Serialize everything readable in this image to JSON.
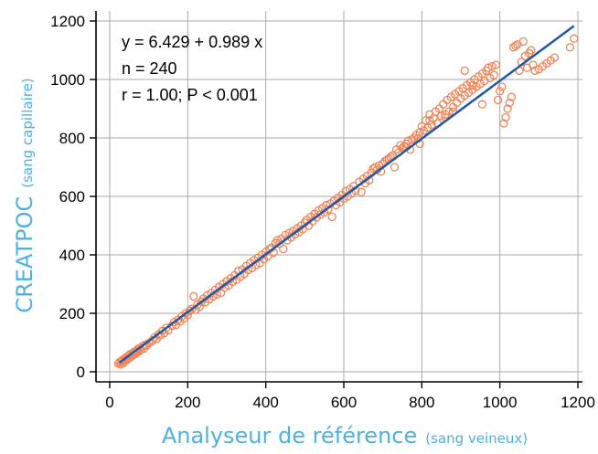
{
  "chart_data": {
    "type": "scatter",
    "x_axis": {
      "title_main": "Analyseur de référence",
      "title_sub": "(sang veineux)",
      "range": [
        0,
        1200
      ],
      "ticks": [
        0,
        200,
        400,
        600,
        800,
        1000,
        1200
      ]
    },
    "y_axis": {
      "title_main": "CREATPOC",
      "title_sub": "(sang capillaire)",
      "range": [
        0,
        1200
      ],
      "ticks": [
        0,
        200,
        400,
        600,
        800,
        1000,
        1200
      ]
    },
    "grid": true,
    "annotations": [
      "y = 6.429 + 0.989 x",
      "n = 240",
      "r = 1.00; P < 0.001"
    ],
    "regression": {
      "intercept": 6.429,
      "slope": 0.989,
      "x_range": [
        25,
        1190
      ]
    },
    "points": [
      [
        22,
        28
      ],
      [
        25,
        33
      ],
      [
        28,
        25
      ],
      [
        30,
        35
      ],
      [
        32,
        40
      ],
      [
        35,
        30
      ],
      [
        38,
        45
      ],
      [
        40,
        38
      ],
      [
        42,
        50
      ],
      [
        45,
        42
      ],
      [
        48,
        55
      ],
      [
        50,
        47
      ],
      [
        52,
        60
      ],
      [
        55,
        52
      ],
      [
        58,
        62
      ],
      [
        60,
        58
      ],
      [
        62,
        68
      ],
      [
        65,
        60
      ],
      [
        68,
        72
      ],
      [
        70,
        66
      ],
      [
        72,
        78
      ],
      [
        75,
        70
      ],
      [
        78,
        82
      ],
      [
        80,
        76
      ],
      [
        85,
        88
      ],
      [
        88,
        80
      ],
      [
        90,
        92
      ],
      [
        95,
        90
      ],
      [
        100,
        98
      ],
      [
        105,
        102
      ],
      [
        110,
        108
      ],
      [
        115,
        118
      ],
      [
        120,
        112
      ],
      [
        125,
        128
      ],
      [
        130,
        125
      ],
      [
        135,
        140
      ],
      [
        140,
        132
      ],
      [
        145,
        150
      ],
      [
        150,
        142
      ],
      [
        160,
        158
      ],
      [
        165,
        170
      ],
      [
        170,
        160
      ],
      [
        175,
        178
      ],
      [
        180,
        172
      ],
      [
        185,
        190
      ],
      [
        190,
        182
      ],
      [
        195,
        200
      ],
      [
        200,
        195
      ],
      [
        205,
        208
      ],
      [
        210,
        215
      ],
      [
        215,
        258
      ],
      [
        220,
        212
      ],
      [
        225,
        230
      ],
      [
        230,
        222
      ],
      [
        235,
        240
      ],
      [
        240,
        250
      ],
      [
        245,
        238
      ],
      [
        250,
        262
      ],
      [
        255,
        248
      ],
      [
        260,
        270
      ],
      [
        265,
        258
      ],
      [
        270,
        280
      ],
      [
        275,
        265
      ],
      [
        280,
        290
      ],
      [
        285,
        270
      ],
      [
        290,
        300
      ],
      [
        295,
        288
      ],
      [
        300,
        310
      ],
      [
        305,
        295
      ],
      [
        310,
        320
      ],
      [
        315,
        308
      ],
      [
        320,
        330
      ],
      [
        325,
        315
      ],
      [
        330,
        345
      ],
      [
        335,
        325
      ],
      [
        340,
        350
      ],
      [
        345,
        335
      ],
      [
        350,
        362
      ],
      [
        355,
        348
      ],
      [
        360,
        372
      ],
      [
        365,
        355
      ],
      [
        370,
        382
      ],
      [
        375,
        365
      ],
      [
        380,
        390
      ],
      [
        385,
        372
      ],
      [
        390,
        400
      ],
      [
        395,
        385
      ],
      [
        400,
        410
      ],
      [
        405,
        395
      ],
      [
        410,
        420
      ],
      [
        415,
        425
      ],
      [
        420,
        408
      ],
      [
        425,
        440
      ],
      [
        430,
        450
      ],
      [
        435,
        438
      ],
      [
        440,
        455
      ],
      [
        445,
        420
      ],
      [
        450,
        468
      ],
      [
        455,
        450
      ],
      [
        460,
        475
      ],
      [
        465,
        460
      ],
      [
        470,
        482
      ],
      [
        475,
        470
      ],
      [
        480,
        490
      ],
      [
        485,
        478
      ],
      [
        490,
        500
      ],
      [
        495,
        488
      ],
      [
        500,
        510
      ],
      [
        505,
        520
      ],
      [
        510,
        500
      ],
      [
        515,
        530
      ],
      [
        520,
        515
      ],
      [
        525,
        540
      ],
      [
        530,
        528
      ],
      [
        535,
        552
      ],
      [
        540,
        538
      ],
      [
        545,
        560
      ],
      [
        550,
        545
      ],
      [
        555,
        570
      ],
      [
        560,
        555
      ],
      [
        565,
        575
      ],
      [
        570,
        530
      ],
      [
        575,
        585
      ],
      [
        580,
        570
      ],
      [
        585,
        595
      ],
      [
        590,
        580
      ],
      [
        595,
        605
      ],
      [
        600,
        592
      ],
      [
        605,
        618
      ],
      [
        610,
        600
      ],
      [
        615,
        625
      ],
      [
        620,
        610
      ],
      [
        625,
        635
      ],
      [
        630,
        620
      ],
      [
        640,
        650
      ],
      [
        645,
        615
      ],
      [
        650,
        660
      ],
      [
        655,
        645
      ],
      [
        660,
        670
      ],
      [
        665,
        655
      ],
      [
        670,
        680
      ],
      [
        675,
        695
      ],
      [
        680,
        700
      ],
      [
        685,
        690
      ],
      [
        690,
        705
      ],
      [
        695,
        685
      ],
      [
        700,
        712
      ],
      [
        705,
        720
      ],
      [
        710,
        725
      ],
      [
        715,
        730
      ],
      [
        720,
        735
      ],
      [
        725,
        740
      ],
      [
        730,
        700
      ],
      [
        735,
        760
      ],
      [
        740,
        750
      ],
      [
        745,
        775
      ],
      [
        750,
        765
      ],
      [
        755,
        770
      ],
      [
        760,
        780
      ],
      [
        765,
        790
      ],
      [
        770,
        760
      ],
      [
        775,
        795
      ],
      [
        780,
        800
      ],
      [
        785,
        810
      ],
      [
        790,
        798
      ],
      [
        795,
        820
      ],
      [
        800,
        840
      ],
      [
        805,
        825
      ],
      [
        810,
        860
      ],
      [
        815,
        835
      ],
      [
        820,
        880
      ],
      [
        825,
        845
      ],
      [
        830,
        868
      ],
      [
        835,
        890
      ],
      [
        840,
        850
      ],
      [
        845,
        900
      ],
      [
        850,
        875
      ],
      [
        855,
        915
      ],
      [
        860,
        880
      ],
      [
        865,
        930
      ],
      [
        870,
        890
      ],
      [
        875,
        940
      ],
      [
        880,
        905
      ],
      [
        885,
        950
      ],
      [
        890,
        920
      ],
      [
        895,
        960
      ],
      [
        900,
        935
      ],
      [
        905,
        970
      ],
      [
        910,
        945
      ],
      [
        915,
        980
      ],
      [
        920,
        955
      ],
      [
        925,
        990
      ],
      [
        930,
        965
      ],
      [
        935,
        1000
      ],
      [
        940,
        975
      ],
      [
        945,
        1010
      ],
      [
        950,
        985
      ],
      [
        955,
        1020
      ],
      [
        960,
        995
      ],
      [
        965,
        1030
      ],
      [
        970,
        1040
      ],
      [
        975,
        1005
      ],
      [
        980,
        1045
      ],
      [
        985,
        1015
      ],
      [
        990,
        1050
      ],
      [
        995,
        930
      ],
      [
        1000,
        960
      ],
      [
        1005,
        975
      ],
      [
        1010,
        850
      ],
      [
        1015,
        870
      ],
      [
        1020,
        900
      ],
      [
        1025,
        920
      ],
      [
        1030,
        940
      ],
      [
        1035,
        1110
      ],
      [
        1040,
        1115
      ],
      [
        1045,
        1120
      ],
      [
        1050,
        1030
      ],
      [
        1055,
        1060
      ],
      [
        1060,
        1130
      ],
      [
        1065,
        1080
      ],
      [
        1070,
        1040
      ],
      [
        1075,
        1090
      ],
      [
        1080,
        1100
      ],
      [
        1085,
        1050
      ],
      [
        1090,
        1030
      ],
      [
        1100,
        1035
      ],
      [
        1110,
        1045
      ],
      [
        1120,
        1055
      ],
      [
        1130,
        1065
      ],
      [
        1140,
        1075
      ],
      [
        1180,
        1110
      ],
      [
        1190,
        1140
      ],
      [
        955,
        915
      ],
      [
        930,
        980
      ],
      [
        880,
        890
      ],
      [
        910,
        1030
      ],
      [
        860,
        870
      ],
      [
        820,
        860
      ],
      [
        795,
        780
      ],
      [
        760,
        770
      ]
    ]
  },
  "colors": {
    "marker": "#f0855a",
    "regression_line": "#1f5aa6",
    "axis_title": "#4fb1e0",
    "grid": "#aaaaaa",
    "axes": "#000000"
  }
}
